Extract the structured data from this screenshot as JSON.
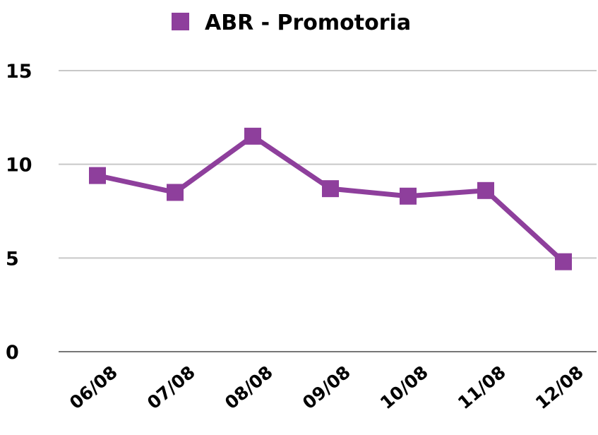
{
  "chart_data": {
    "type": "line",
    "categories": [
      "06/08",
      "07/08",
      "08/08",
      "09/08",
      "10/08",
      "11/08",
      "12/08"
    ],
    "series": [
      {
        "name": "ABR - Promotoria",
        "color": "#8e3f9c",
        "values": [
          9.4,
          8.5,
          11.5,
          8.7,
          8.3,
          8.6,
          4.8
        ]
      }
    ],
    "ylim": [
      0,
      15
    ],
    "yticks": [
      0,
      5,
      10,
      15
    ],
    "grid": true,
    "legend": "top"
  }
}
